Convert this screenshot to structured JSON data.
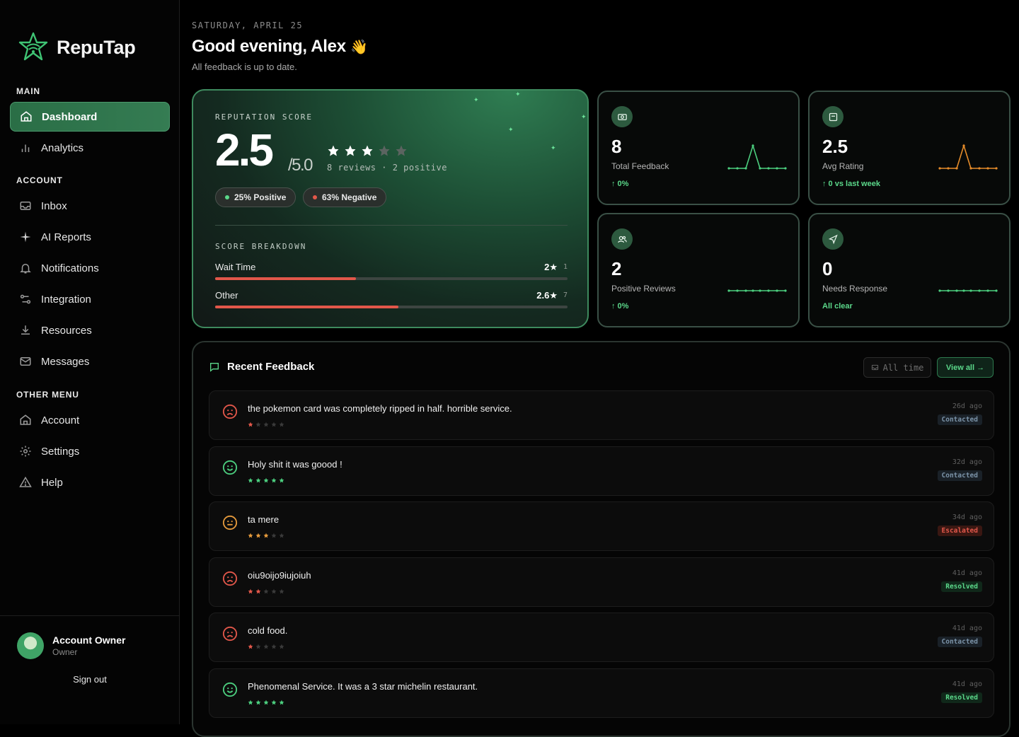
{
  "brand": {
    "name": "RepuTap"
  },
  "sidebar": {
    "section_main": "MAIN",
    "section_account": "ACCOUNT",
    "section_other": "OTHER MENU",
    "items": [
      {
        "label": "Dashboard",
        "icon": "home-icon",
        "active": true
      },
      {
        "label": "Analytics",
        "icon": "bar-chart-icon"
      },
      {
        "label": "Inbox",
        "icon": "inbox-icon"
      },
      {
        "label": "AI Reports",
        "icon": "sparkle-icon"
      },
      {
        "label": "Notifications",
        "icon": "bell-icon"
      },
      {
        "label": "Integration",
        "icon": "integration-icon"
      },
      {
        "label": "Resources",
        "icon": "download-icon"
      },
      {
        "label": "Messages",
        "icon": "mail-icon"
      },
      {
        "label": "Account",
        "icon": "home-icon"
      },
      {
        "label": "Settings",
        "icon": "gear-icon"
      },
      {
        "label": "Help",
        "icon": "warning-icon"
      }
    ],
    "owner_name": "Account Owner",
    "owner_role": "Owner",
    "sign_out": "Sign out"
  },
  "header": {
    "date": "SATURDAY, APRIL 25",
    "greeting": "Good evening, Alex",
    "greeting_emoji": "👋",
    "subtitle": "All feedback is up to date."
  },
  "reputation": {
    "label": "REPUTATION SCORE",
    "score": "2.5",
    "max": "/5.0",
    "stars_filled": 3,
    "stars_total": 5,
    "meta": "8 reviews · 2 positive",
    "positive_pill": "25% Positive",
    "negative_pill": "63% Negative",
    "breakdown_label": "SCORE BREAKDOWN",
    "breakdown": [
      {
        "name": "Wait Time",
        "score": "2★",
        "count": "1",
        "fill": 0.4
      },
      {
        "name": "Other",
        "score": "2.6★",
        "count": "7",
        "fill": 0.52
      }
    ]
  },
  "stats": [
    {
      "value": "8",
      "label": "Total Feedback",
      "trend": "↑ 0%",
      "icon": "eye-icon",
      "spark_color": "#4ccf7f"
    },
    {
      "value": "2.5",
      "label": "Avg Rating",
      "trend": "↑ 0 vs last week",
      "icon": "message-square-icon",
      "spark_color": "#e58c2a"
    },
    {
      "value": "2",
      "label": "Positive Reviews",
      "trend": "↑ 0%",
      "icon": "users-icon",
      "spark_color": "#4ccf7f"
    },
    {
      "value": "0",
      "label": "Needs Response",
      "trend": "All clear",
      "icon": "send-icon",
      "spark_color": "#4ccf7f"
    }
  ],
  "recent": {
    "title": "Recent Feedback",
    "filter_label": "All time",
    "view_all": "View all →",
    "items": [
      {
        "text": "the pokemon card was completely ripped in half. horrible service.",
        "rating": 1,
        "mood": "sad",
        "time": "26d ago",
        "status": "Contacted"
      },
      {
        "text": "Holy shit it was goood !",
        "rating": 5,
        "mood": "happy",
        "time": "32d ago",
        "status": "Contacted"
      },
      {
        "text": "ta mere",
        "rating": 3,
        "mood": "neutral",
        "time": "34d ago",
        "status": "Escalated"
      },
      {
        "text": "oiu9oijo9iujoiuh",
        "rating": 2,
        "mood": "sad",
        "time": "41d ago",
        "status": "Resolved"
      },
      {
        "text": "cold food.",
        "rating": 1,
        "mood": "sad",
        "time": "41d ago",
        "status": "Contacted"
      },
      {
        "text": "Phenomenal Service. It was a 3 star michelin restaurant.",
        "rating": 5,
        "mood": "happy",
        "time": "41d ago",
        "status": "Resolved"
      }
    ]
  },
  "colors": {
    "accent": "#3f8f5f",
    "positive": "#5bd88a",
    "negative": "#e2574a",
    "neutral": "#e59a3c"
  }
}
